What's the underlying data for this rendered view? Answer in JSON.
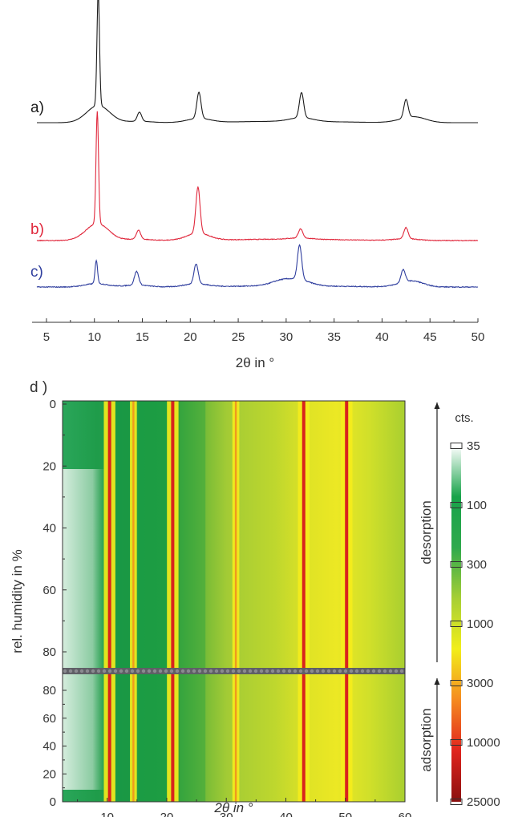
{
  "chart_data": [
    {
      "type": "line",
      "panel": "top",
      "xlabel": "2θ in °",
      "xlim": [
        3.5,
        50
      ],
      "xticks": [
        5,
        10,
        15,
        20,
        25,
        30,
        35,
        40,
        45,
        50
      ],
      "grid": false,
      "y_axis_shown": false,
      "series": [
        {
          "name": "a)",
          "color": "#1a1a1a",
          "baseline": 0.0,
          "peaks": [
            [
              10.4,
              1.0
            ],
            [
              14.7,
              0.08
            ],
            [
              20.9,
              0.23
            ],
            [
              31.6,
              0.22
            ],
            [
              42.5,
              0.16
            ],
            [
              43.7,
              0.03
            ]
          ],
          "noise": 0.0
        },
        {
          "name": "b)",
          "color": "#e0283c",
          "baseline": 0.0,
          "peaks": [
            [
              10.3,
              1.0
            ],
            [
              14.6,
              0.08
            ],
            [
              20.8,
              0.41
            ],
            [
              31.5,
              0.08
            ],
            [
              42.5,
              0.1
            ]
          ],
          "noise": 0.006
        },
        {
          "name": "c)",
          "color": "#2f3e9e",
          "baseline": 0.0,
          "peaks": [
            [
              10.2,
              0.22
            ],
            [
              14.4,
              0.13
            ],
            [
              20.6,
              0.19
            ],
            [
              29.5,
              0.04
            ],
            [
              31.4,
              0.33
            ],
            [
              42.2,
              0.12
            ],
            [
              43.3,
              0.04
            ]
          ],
          "noise": 0.008
        }
      ]
    },
    {
      "type": "heatmap",
      "panel": "bottom",
      "label": "d )",
      "xlabel": "2θ in °",
      "ylabel": "rel. humidity in %",
      "xlim": [
        2.5,
        60
      ],
      "xticks": [
        10,
        20,
        30,
        40,
        50,
        60
      ],
      "yticks_top": [
        0,
        20,
        40,
        60,
        80
      ],
      "yticks_bottom": [
        80,
        60,
        40,
        20,
        0
      ],
      "sections": [
        "desorption",
        "adsorption"
      ],
      "colorbar": {
        "title": "cts.",
        "ticks": [
          35,
          100,
          300,
          1000,
          3000,
          10000,
          25000
        ],
        "colors": [
          "#ffffff",
          "#18a34a",
          "#2fa94d",
          "#a7cf35",
          "#f2ee1a",
          "#f58a20",
          "#e0241e",
          "#8a1010"
        ]
      },
      "bands": [
        {
          "center": 10.4,
          "level": "peak"
        },
        {
          "center": 14.4,
          "level": "high"
        },
        {
          "center": 21.0,
          "level": "peak"
        },
        {
          "center": 31.6,
          "level": "high"
        },
        {
          "center": 43.0,
          "level": "peak"
        },
        {
          "center": 50.2,
          "level": "peak"
        }
      ]
    }
  ]
}
